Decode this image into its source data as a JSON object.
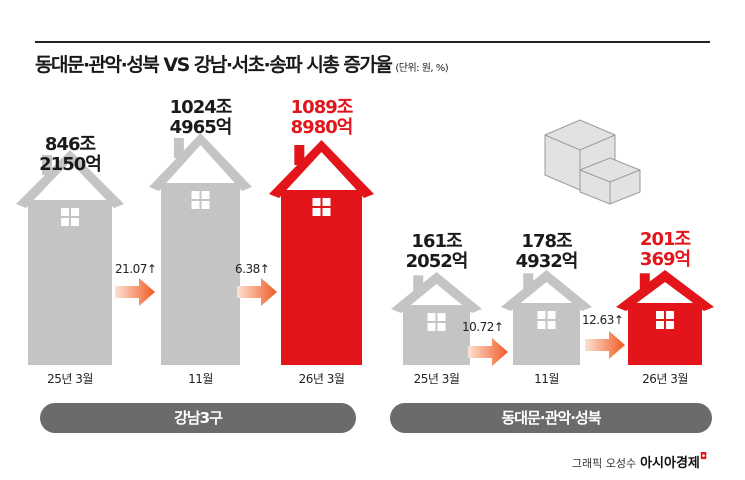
{
  "title": "동대문·관악·성북 VS 강남·서초·송파 시총 증가율",
  "unit": "(단위: 원, %)",
  "colors": {
    "normal": "#c4c4c4",
    "highlight": "#e3151a",
    "arrow": "#f26a2e",
    "pill": "#6b6b6b"
  },
  "chart_data": [
    {
      "type": "bar",
      "group": "강남3구",
      "categories": [
        "25년 3월",
        "11월",
        "26년 3월"
      ],
      "labels": [
        "846조\n2150억",
        "1024조\n4965억",
        "1089조\n8980억"
      ],
      "values_jo": [
        846.215,
        1024.4965,
        1089.898
      ],
      "growth_pct": [
        "21.07↑",
        "6.38↑"
      ],
      "highlight_index": 2
    },
    {
      "type": "bar",
      "group": "동대문·관악·성북",
      "categories": [
        "25년 3월",
        "11월",
        "26년 3월"
      ],
      "labels": [
        "161조\n2052억",
        "178조\n4932억",
        "201조\n369억"
      ],
      "values_jo": [
        161.2052,
        178.4932,
        201.0369
      ],
      "growth_pct": [
        "10.72↑",
        "12.63↑"
      ],
      "highlight_index": 2
    }
  ],
  "credit": {
    "graphic": "그래픽 오성수",
    "brand": "아시아경제"
  },
  "icons": {
    "decoration": "money-stack-icon",
    "house": "house-icon",
    "arrow": "arrow-right-icon"
  }
}
